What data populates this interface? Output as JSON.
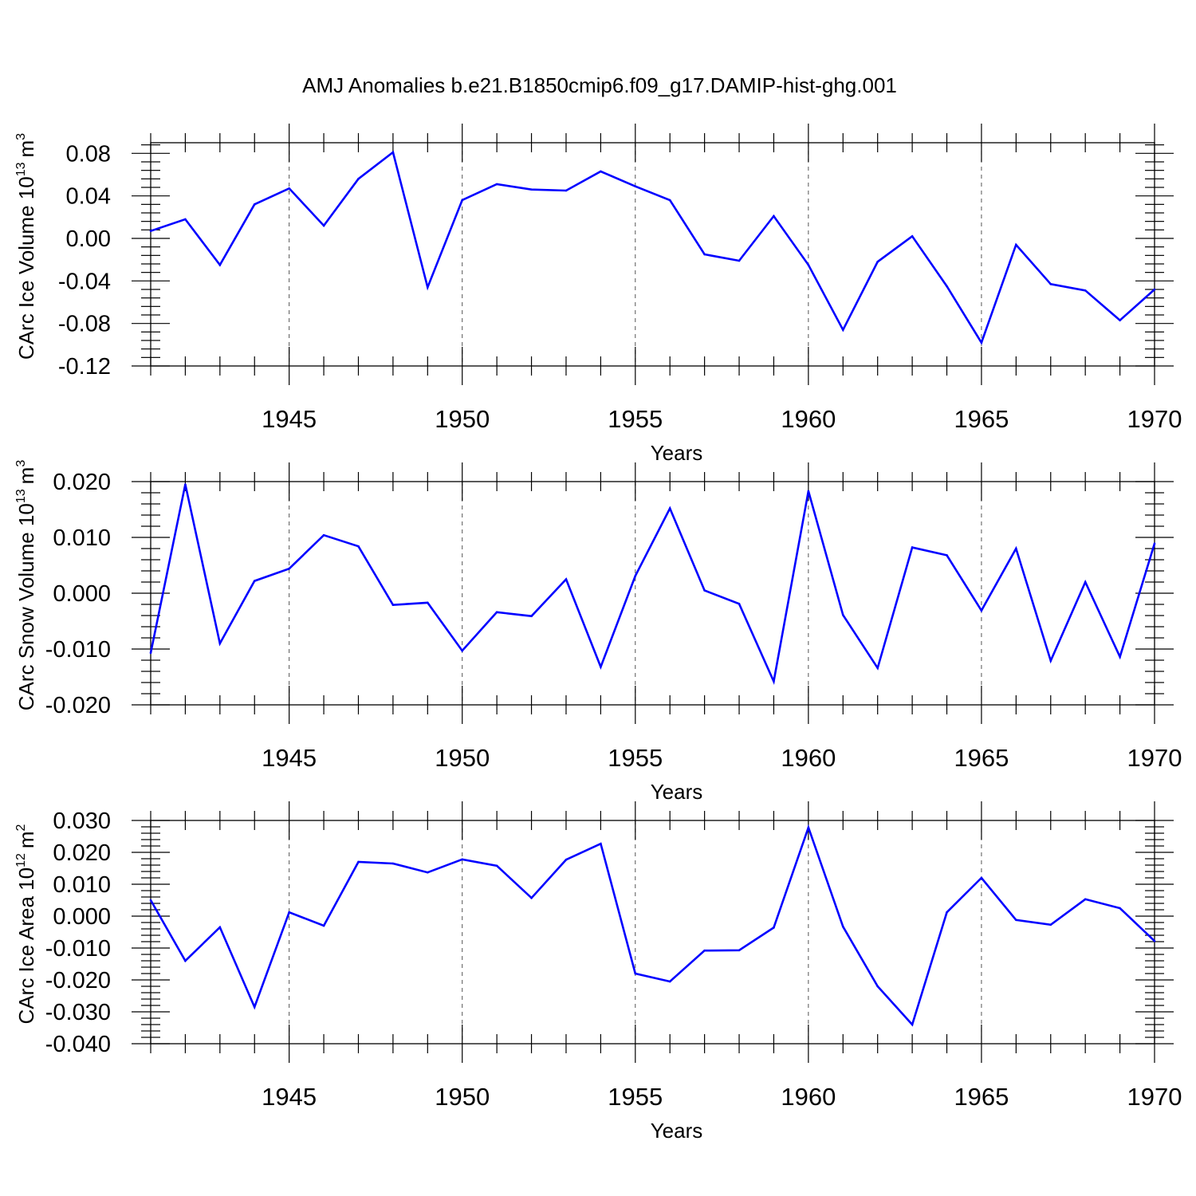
{
  "title": "AMJ Anomalies b.e21.B1850cmip6.f09_g17.DAMIP-hist-ghg.001",
  "colors": {
    "series": "#0000ff",
    "axis": "#000000",
    "grid": "#555555"
  },
  "chart_data": [
    {
      "type": "line",
      "ylabel": "CArc Ice Volume 10",
      "ylabel_sup": "13",
      "ylabel_unit": "m",
      "ylabel_unit_sup": "3",
      "xlabel": "Years",
      "xlim": [
        1941,
        1970
      ],
      "ylim": [
        -0.12,
        0.09
      ],
      "yticks": [
        -0.12,
        -0.08,
        -0.04,
        0.0,
        0.04,
        0.08
      ],
      "ytick_labels": [
        "-0.12",
        "-0.08",
        "-0.04",
        "0.00",
        "0.04",
        "0.08"
      ],
      "xticks": [
        1945,
        1950,
        1955,
        1960,
        1965,
        1970
      ],
      "xtick_labels": [
        "1945",
        "1950",
        "1955",
        "1960",
        "1965",
        "1970"
      ],
      "x": [
        1941,
        1942,
        1943,
        1944,
        1945,
        1946,
        1947,
        1948,
        1949,
        1950,
        1951,
        1952,
        1953,
        1954,
        1955,
        1956,
        1957,
        1958,
        1959,
        1960,
        1961,
        1962,
        1963,
        1964,
        1965,
        1966,
        1967,
        1968,
        1969,
        1970
      ],
      "values": [
        0.007,
        0.018,
        -0.025,
        0.032,
        0.047,
        0.012,
        0.056,
        0.081,
        -0.046,
        0.036,
        0.051,
        0.046,
        0.045,
        0.063,
        0.049,
        0.036,
        -0.015,
        -0.021,
        0.021,
        -0.025,
        -0.086,
        -0.022,
        0.002,
        -0.045,
        -0.098,
        -0.006,
        -0.043,
        -0.049,
        -0.077,
        -0.048
      ]
    },
    {
      "type": "line",
      "ylabel": "CArc Snow Volume 10",
      "ylabel_sup": "13",
      "ylabel_unit": "m",
      "ylabel_unit_sup": "3",
      "xlabel": "Years",
      "xlim": [
        1941,
        1970
      ],
      "ylim": [
        -0.02,
        0.02
      ],
      "yticks": [
        -0.02,
        -0.01,
        0.0,
        0.01,
        0.02
      ],
      "ytick_labels": [
        "-0.020",
        "-0.010",
        "0.000",
        "0.010",
        "0.020"
      ],
      "xticks": [
        1945,
        1950,
        1955,
        1960,
        1965,
        1970
      ],
      "xtick_labels": [
        "1945",
        "1950",
        "1955",
        "1960",
        "1965",
        "1970"
      ],
      "x": [
        1941,
        1942,
        1943,
        1944,
        1945,
        1946,
        1947,
        1948,
        1949,
        1950,
        1951,
        1952,
        1953,
        1954,
        1955,
        1956,
        1957,
        1958,
        1959,
        1960,
        1961,
        1962,
        1963,
        1964,
        1965,
        1966,
        1967,
        1968,
        1969,
        1970
      ],
      "values": [
        -0.0107,
        0.0195,
        -0.009,
        0.0022,
        0.0044,
        0.0104,
        0.0084,
        -0.0021,
        -0.0017,
        -0.0103,
        -0.0034,
        -0.0041,
        0.0025,
        -0.0132,
        0.0031,
        0.0152,
        0.0005,
        -0.0019,
        -0.0158,
        0.0183,
        -0.0039,
        -0.0134,
        0.0082,
        0.0068,
        -0.0031,
        0.008,
        -0.0121,
        0.002,
        -0.0114,
        0.0089
      ]
    },
    {
      "type": "line",
      "ylabel": "CArc Ice Area 10",
      "ylabel_sup": "12",
      "ylabel_unit": "m",
      "ylabel_unit_sup": "2",
      "xlabel": "Years",
      "xlim": [
        1941,
        1970
      ],
      "ylim": [
        -0.04,
        0.03
      ],
      "yticks": [
        -0.04,
        -0.03,
        -0.02,
        -0.01,
        0.0,
        0.01,
        0.02,
        0.03
      ],
      "ytick_labels": [
        "-0.040",
        "-0.030",
        "-0.020",
        "-0.010",
        "0.000",
        "0.010",
        "0.020",
        "0.030"
      ],
      "xticks": [
        1945,
        1950,
        1955,
        1960,
        1965,
        1970
      ],
      "xtick_labels": [
        "1945",
        "1950",
        "1955",
        "1960",
        "1965",
        "1970"
      ],
      "x": [
        1941,
        1942,
        1943,
        1944,
        1945,
        1946,
        1947,
        1948,
        1949,
        1950,
        1951,
        1952,
        1953,
        1954,
        1955,
        1956,
        1957,
        1958,
        1959,
        1960,
        1961,
        1962,
        1963,
        1964,
        1965,
        1966,
        1967,
        1968,
        1969,
        1970
      ],
      "values": [
        0.005,
        -0.014,
        -0.0035,
        -0.0285,
        0.0012,
        -0.003,
        0.017,
        0.0165,
        0.0137,
        0.0178,
        0.0158,
        0.0057,
        0.0177,
        0.0227,
        -0.018,
        -0.0205,
        -0.0108,
        -0.0107,
        -0.0036,
        0.0278,
        -0.0033,
        -0.022,
        -0.034,
        0.0012,
        0.012,
        -0.0012,
        -0.0027,
        0.0053,
        0.0025,
        -0.0078
      ]
    }
  ]
}
